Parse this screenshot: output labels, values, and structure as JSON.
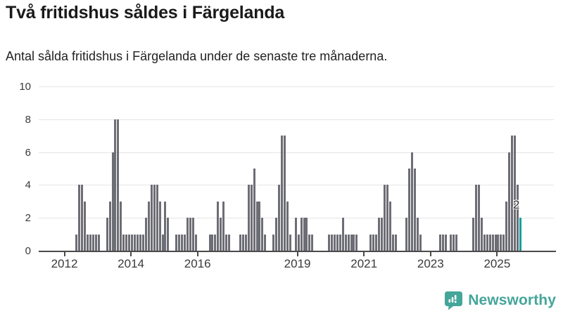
{
  "title": "Två fritidshus såldes i Färgelanda",
  "subtitle": "Antal sålda fritidshus i Färgelanda under de senaste tre månaderna.",
  "watermark": {
    "label": "Newsworthy",
    "icon": "newsworthy-speech-bubble-chart-icon"
  },
  "colors": {
    "bar": "#6d6d75",
    "highlight": "#0b9fa1",
    "grid": "#e6e6e6",
    "axis": "#4a4a4a",
    "text": "#3a3a3a",
    "brand": "#45a59a"
  },
  "chart_data": {
    "type": "bar",
    "title": "Två fritidshus såldes i Färgelanda",
    "subtitle": "Antal sålda fritidshus i Färgelanda under de senaste tre månaderna.",
    "xlabel": "",
    "ylabel": "",
    "ylim": [
      0,
      10
    ],
    "y_ticks": [
      0,
      2,
      4,
      6,
      8,
      10
    ],
    "grid": "horizontal",
    "legend": "none",
    "x_tick_years": [
      2012,
      2014,
      2016,
      2019,
      2021,
      2023,
      2025
    ],
    "x_tick_labels": [
      "2012",
      "2014",
      "2016",
      "2019",
      "2021",
      "2023",
      "2025"
    ],
    "series_start_month": "2012-05",
    "series_frequency": "monthly",
    "highlight_last_bar": true,
    "last_value_label": "2",
    "values": [
      1,
      4,
      4,
      3,
      1,
      1,
      1,
      1,
      1,
      0,
      0,
      2,
      3,
      6,
      8,
      8,
      3,
      1,
      1,
      1,
      1,
      1,
      1,
      1,
      1,
      2,
      3,
      4,
      4,
      4,
      3,
      1,
      3,
      2,
      0,
      0,
      1,
      1,
      1,
      1,
      2,
      2,
      2,
      1,
      0,
      0,
      0,
      0,
      1,
      1,
      1,
      3,
      2,
      3,
      1,
      1,
      0,
      0,
      0,
      1,
      1,
      1,
      4,
      4,
      5,
      3,
      3,
      2,
      1,
      0,
      0,
      1,
      2,
      4,
      7,
      7,
      3,
      1,
      0,
      2,
      1,
      2,
      2,
      2,
      1,
      1,
      0,
      0,
      0,
      0,
      0,
      1,
      1,
      1,
      1,
      1,
      2,
      1,
      1,
      1,
      1,
      1,
      0,
      0,
      0,
      0,
      1,
      1,
      1,
      2,
      2,
      4,
      4,
      3,
      1,
      1,
      0,
      0,
      0,
      2,
      5,
      6,
      5,
      2,
      1,
      0,
      0,
      0,
      0,
      0,
      0,
      1,
      1,
      1,
      0,
      1,
      1,
      1,
      0,
      0,
      0,
      0,
      0,
      2,
      4,
      4,
      2,
      1,
      1,
      1,
      1,
      1,
      1,
      1,
      1,
      3,
      6,
      7,
      7,
      4,
      2
    ]
  }
}
